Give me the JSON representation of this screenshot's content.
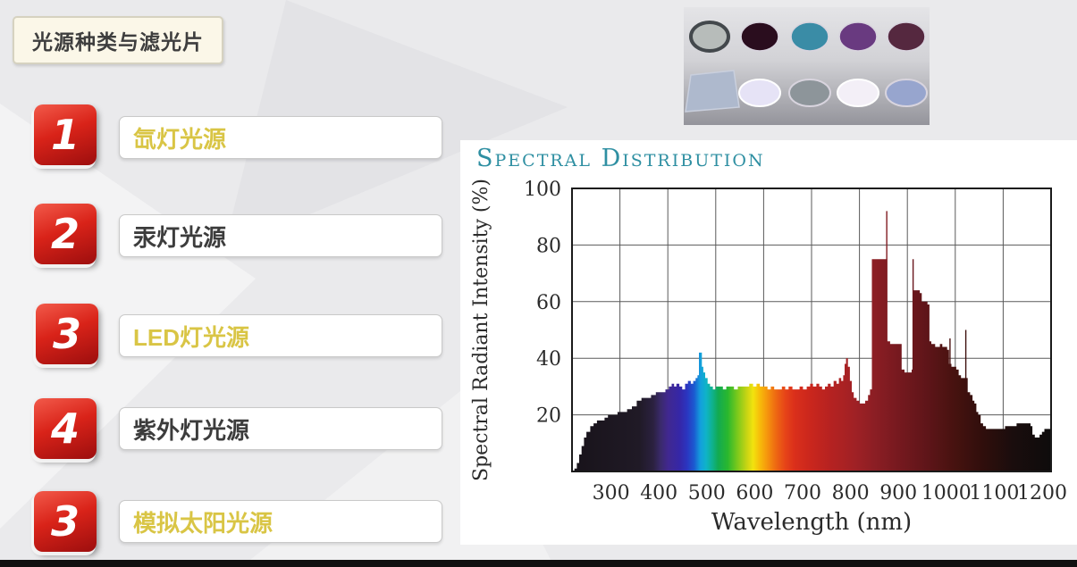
{
  "slide": {
    "title": "光源种类与滤光片",
    "items": [
      {
        "num": "1",
        "label": "氙灯光源",
        "highlight": true
      },
      {
        "num": "2",
        "label": "汞灯光源",
        "highlight": false
      },
      {
        "num": "3",
        "label": "LED灯光源",
        "highlight": true
      },
      {
        "num": "4",
        "label": "紫外灯光源",
        "highlight": false
      },
      {
        "num": "3",
        "label": "模拟太阳光源",
        "highlight": true
      }
    ],
    "accent_red": "#c9201a",
    "highlight_gold": "#d9c545",
    "text_dark": "#3c3c3c"
  },
  "filters_image": {
    "row1": [
      {
        "name": "gray-lens-filter",
        "color": "#b7bcba",
        "ring": "#43484c"
      },
      {
        "name": "dark-plum-filter",
        "color": "#2a0d1e",
        "ring": "#d8d4de"
      },
      {
        "name": "teal-filter",
        "color": "#3a8ca6",
        "ring": "#d8d4de"
      },
      {
        "name": "purple-filter",
        "color": "#693a80",
        "ring": "#d8d4de"
      },
      {
        "name": "wine-filter",
        "color": "#55283f",
        "ring": "#d8d4de"
      }
    ],
    "row2": [
      {
        "name": "square-glass-filter",
        "color": "#aeb9cd",
        "ring": "#c9cfdd"
      },
      {
        "name": "lavender-filter",
        "color": "#e6e3f6",
        "ring": "#ffffff"
      },
      {
        "name": "gray-filter",
        "color": "#8d959a",
        "ring": "#d8d4de"
      },
      {
        "name": "white-filter",
        "color": "#f3eff7",
        "ring": "#ffffff"
      },
      {
        "name": "periwinkle-filter",
        "color": "#97a5ce",
        "ring": "#d8d4de"
      }
    ]
  },
  "chart_data": {
    "type": "area",
    "title": "Spectral Distribution",
    "title_color": "#2e8fa2",
    "xlabel": "Wavelength (nm)",
    "ylabel": "Spectral Radiant Intensity (%)",
    "xlim": [
      200,
      1200
    ],
    "ylim": [
      0,
      100
    ],
    "x_ticks": [
      300,
      400,
      500,
      600,
      700,
      800,
      900,
      1000,
      1100,
      1200
    ],
    "y_ticks": [
      20,
      40,
      60,
      80,
      100
    ],
    "grid": true,
    "legend": "none",
    "points": [
      [
        200,
        0
      ],
      [
        205,
        1
      ],
      [
        210,
        3
      ],
      [
        215,
        6
      ],
      [
        220,
        9
      ],
      [
        225,
        12
      ],
      [
        230,
        14
      ],
      [
        238,
        16
      ],
      [
        245,
        17
      ],
      [
        252,
        18
      ],
      [
        260,
        18
      ],
      [
        268,
        19
      ],
      [
        275,
        20
      ],
      [
        285,
        20
      ],
      [
        295,
        21
      ],
      [
        305,
        21
      ],
      [
        315,
        22
      ],
      [
        325,
        23
      ],
      [
        335,
        25
      ],
      [
        345,
        26
      ],
      [
        355,
        26
      ],
      [
        365,
        27
      ],
      [
        375,
        28
      ],
      [
        385,
        28
      ],
      [
        395,
        29
      ],
      [
        402,
        30
      ],
      [
        408,
        31
      ],
      [
        413,
        30
      ],
      [
        418,
        31
      ],
      [
        424,
        30
      ],
      [
        430,
        29
      ],
      [
        436,
        31
      ],
      [
        442,
        32
      ],
      [
        448,
        31
      ],
      [
        453,
        32
      ],
      [
        458,
        33
      ],
      [
        462,
        34
      ],
      [
        465,
        42
      ],
      [
        468,
        42
      ],
      [
        471,
        37
      ],
      [
        474,
        35
      ],
      [
        478,
        33
      ],
      [
        483,
        31
      ],
      [
        488,
        30
      ],
      [
        494,
        29
      ],
      [
        500,
        30
      ],
      [
        508,
        30
      ],
      [
        515,
        29
      ],
      [
        522,
        30
      ],
      [
        530,
        30
      ],
      [
        538,
        29
      ],
      [
        546,
        30
      ],
      [
        554,
        30
      ],
      [
        562,
        30
      ],
      [
        570,
        31
      ],
      [
        578,
        30
      ],
      [
        585,
        31
      ],
      [
        592,
        30
      ],
      [
        600,
        30
      ],
      [
        608,
        29
      ],
      [
        615,
        30
      ],
      [
        622,
        29
      ],
      [
        630,
        29
      ],
      [
        638,
        30
      ],
      [
        645,
        29
      ],
      [
        652,
        30
      ],
      [
        660,
        29
      ],
      [
        668,
        29
      ],
      [
        675,
        30
      ],
      [
        682,
        29
      ],
      [
        690,
        30
      ],
      [
        697,
        31
      ],
      [
        703,
        30
      ],
      [
        710,
        31
      ],
      [
        716,
        30
      ],
      [
        722,
        29
      ],
      [
        728,
        30
      ],
      [
        734,
        31
      ],
      [
        740,
        30
      ],
      [
        746,
        32
      ],
      [
        752,
        31
      ],
      [
        757,
        33
      ],
      [
        762,
        32
      ],
      [
        766,
        34
      ],
      [
        769,
        38
      ],
      [
        772,
        40
      ],
      [
        776,
        37
      ],
      [
        780,
        32
      ],
      [
        784,
        28
      ],
      [
        788,
        26
      ],
      [
        794,
        25
      ],
      [
        800,
        24
      ],
      [
        806,
        24
      ],
      [
        812,
        25
      ],
      [
        818,
        27
      ],
      [
        822,
        29
      ],
      [
        826,
        75
      ],
      [
        833,
        75
      ],
      [
        840,
        75
      ],
      [
        848,
        75
      ],
      [
        855,
        75
      ],
      [
        858,
        46
      ],
      [
        864,
        45
      ],
      [
        872,
        45
      ],
      [
        878,
        45
      ],
      [
        884,
        45
      ],
      [
        888,
        36
      ],
      [
        894,
        35
      ],
      [
        900,
        35
      ],
      [
        906,
        35
      ],
      [
        909,
        36
      ],
      [
        911,
        64
      ],
      [
        916,
        64
      ],
      [
        921,
        64
      ],
      [
        926,
        63
      ],
      [
        930,
        60
      ],
      [
        934,
        60
      ],
      [
        938,
        60
      ],
      [
        942,
        59
      ],
      [
        946,
        46
      ],
      [
        950,
        45
      ],
      [
        954,
        45
      ],
      [
        958,
        44
      ],
      [
        963,
        44
      ],
      [
        968,
        45
      ],
      [
        973,
        44
      ],
      [
        978,
        44
      ],
      [
        983,
        43
      ],
      [
        987,
        38
      ],
      [
        992,
        37
      ],
      [
        997,
        37
      ],
      [
        1002,
        36
      ],
      [
        1007,
        34
      ],
      [
        1012,
        33
      ],
      [
        1017,
        33
      ],
      [
        1022,
        33
      ],
      [
        1026,
        28
      ],
      [
        1031,
        27
      ],
      [
        1036,
        25
      ],
      [
        1040,
        24
      ],
      [
        1044,
        21
      ],
      [
        1048,
        20
      ],
      [
        1053,
        17
      ],
      [
        1058,
        16
      ],
      [
        1064,
        15
      ],
      [
        1072,
        15
      ],
      [
        1080,
        15
      ],
      [
        1088,
        15
      ],
      [
        1096,
        15
      ],
      [
        1104,
        16
      ],
      [
        1112,
        16
      ],
      [
        1120,
        16
      ],
      [
        1128,
        17
      ],
      [
        1136,
        17
      ],
      [
        1144,
        17
      ],
      [
        1152,
        17
      ],
      [
        1157,
        16
      ],
      [
        1161,
        13
      ],
      [
        1166,
        12
      ],
      [
        1171,
        12
      ],
      [
        1176,
        13
      ],
      [
        1181,
        14
      ],
      [
        1186,
        15
      ],
      [
        1192,
        15
      ],
      [
        1200,
        15
      ]
    ],
    "needles": [
      [
        857,
        92
      ],
      [
        912,
        75
      ],
      [
        989,
        47
      ],
      [
        1022,
        50
      ]
    ],
    "spectrum_gradient": [
      {
        "nm": 200,
        "color": "#18131a"
      },
      {
        "nm": 340,
        "color": "#201a26"
      },
      {
        "nm": 370,
        "color": "#2b2140"
      },
      {
        "nm": 385,
        "color": "#3a2a6b"
      },
      {
        "nm": 400,
        "color": "#41288f"
      },
      {
        "nm": 425,
        "color": "#3527a8"
      },
      {
        "nm": 440,
        "color": "#2b35c0"
      },
      {
        "nm": 455,
        "color": "#1b5ad0"
      },
      {
        "nm": 468,
        "color": "#139fdd"
      },
      {
        "nm": 480,
        "color": "#0fb3c8"
      },
      {
        "nm": 492,
        "color": "#0fb292"
      },
      {
        "nm": 505,
        "color": "#12aa52"
      },
      {
        "nm": 525,
        "color": "#2ab82e"
      },
      {
        "nm": 545,
        "color": "#7ac91c"
      },
      {
        "nm": 565,
        "color": "#c8d414"
      },
      {
        "nm": 578,
        "color": "#f2e30e"
      },
      {
        "nm": 592,
        "color": "#f7bc0a"
      },
      {
        "nm": 608,
        "color": "#f5940d"
      },
      {
        "nm": 625,
        "color": "#ee6a12"
      },
      {
        "nm": 645,
        "color": "#e64418"
      },
      {
        "nm": 665,
        "color": "#da2f1b"
      },
      {
        "nm": 700,
        "color": "#c9261d"
      },
      {
        "nm": 740,
        "color": "#b52221"
      },
      {
        "nm": 790,
        "color": "#a02125"
      },
      {
        "nm": 830,
        "color": "#8c1e24"
      },
      {
        "nm": 880,
        "color": "#77191f"
      },
      {
        "nm": 940,
        "color": "#5f1519"
      },
      {
        "nm": 1000,
        "color": "#46120f"
      },
      {
        "nm": 1060,
        "color": "#2f0e0c"
      },
      {
        "nm": 1120,
        "color": "#1a0d0d"
      },
      {
        "nm": 1200,
        "color": "#0e0c0c"
      }
    ]
  }
}
